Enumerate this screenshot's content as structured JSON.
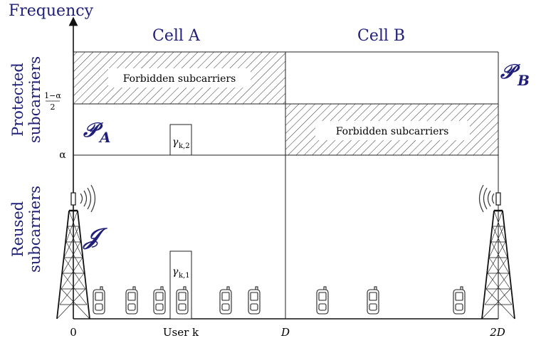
{
  "axis": {
    "y_label": "Frequency",
    "x_ticks": [
      "0",
      "User k",
      "D",
      "2D"
    ],
    "y_ticks": [
      "1−α",
      "2",
      "α"
    ]
  },
  "cells": {
    "a_label": "Cell A",
    "b_label": "Cell B"
  },
  "bands": {
    "protected_label_line1": "Protected",
    "protected_label_line2": "subcarriers",
    "reused_label_line1": "Reused",
    "reused_label_line2": "subcarriers",
    "forbidden_a": "Forbidden subcarriers",
    "forbidden_b": "Forbidden subcarriers"
  },
  "symbols": {
    "p_a": "𝒫",
    "p_a_sub": "A",
    "p_b": "𝒫",
    "p_b_sub": "B",
    "j": "𝒥",
    "gamma_k2": "γ",
    "gamma_k2_sub": "k,2",
    "gamma_k1": "γ",
    "gamma_k1_sub": "k,1"
  },
  "colors": {
    "label_blue": "#1f1f7a",
    "line": "#222222"
  },
  "icons": {
    "tower": "cell-tower-icon",
    "phone": "mobile-phone-icon",
    "signal": "signal-waves-icon"
  }
}
